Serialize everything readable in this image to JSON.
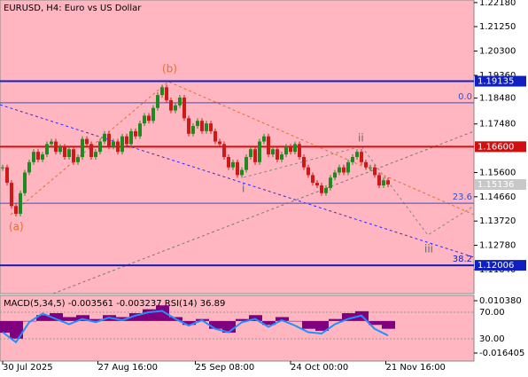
{
  "chart_data": [
    {
      "type": "candlestick",
      "title": "EURUSD, H4:  Euro vs US Dollar",
      "values": [
        1.158,
        1.152,
        1.143,
        1.14,
        1.148,
        1.156,
        1.16,
        1.164,
        1.161,
        1.163,
        1.167,
        1.168,
        1.164,
        1.166,
        1.162,
        1.165,
        1.16,
        1.162,
        1.169,
        1.167,
        1.162,
        1.164,
        1.168,
        1.171,
        1.166,
        1.168,
        1.164,
        1.17,
        1.167,
        1.172,
        1.17,
        1.175,
        1.178,
        1.176,
        1.181,
        1.186,
        1.189,
        1.184,
        1.18,
        1.182,
        1.185,
        1.177,
        1.171,
        1.174,
        1.176,
        1.172,
        1.175,
        1.172,
        1.168,
        1.167,
        1.162,
        1.158,
        1.16,
        1.155,
        1.157,
        1.162,
        1.165,
        1.16,
        1.168,
        1.17,
        1.163,
        1.165,
        1.161,
        1.163,
        1.166,
        1.164,
        1.167,
        1.162,
        1.158,
        1.155,
        1.152,
        1.151,
        1.148,
        1.15,
        1.154,
        1.156,
        1.158,
        1.156,
        1.16,
        1.162,
        1.164,
        1.16,
        1.158,
        1.158,
        1.155,
        1.151,
        1.153,
        1.15136
      ],
      "up_color": "#1f8a1f",
      "down_color": "#d01818",
      "xlim": [
        -0.6,
        106.4
      ],
      "ylim": [
        1.1091,
        1.2228
      ],
      "xticks": [
        {
          "value": 0,
          "label": "30 Jul 2025"
        },
        {
          "value": 21.5,
          "label": "27 Aug 16:00"
        },
        {
          "value": 43.5,
          "label": "25 Sep 08:00"
        },
        {
          "value": 65,
          "label": "24 Oct 00:00"
        },
        {
          "value": 86.5,
          "label": "21 Nov 16:00"
        }
      ],
      "yticks": [
        {
          "value": 1.2218,
          "label": "1.22180"
        },
        {
          "value": 1.2125,
          "label": "1.21250"
        },
        {
          "value": 1.203,
          "label": "1.20300"
        },
        {
          "value": 1.1936,
          "label": "1.19360"
        },
        {
          "value": 1.1848,
          "label": "1.18480"
        },
        {
          "value": 1.1748,
          "label": "1.17480"
        },
        {
          "value": 1.156,
          "label": "1.15600"
        },
        {
          "value": 1.1466,
          "label": "1.14660"
        },
        {
          "value": 1.1372,
          "label": "1.13720"
        },
        {
          "value": 1.1278,
          "label": "1.12780"
        },
        {
          "value": 1.1184,
          "label": "1.11840"
        }
      ],
      "levels": [
        {
          "value": 1.19135,
          "label": "1.19135",
          "color": "#1020c0",
          "width": 2
        },
        {
          "value": 1.183,
          "fib_label": "0.0",
          "color": "#3050d0",
          "width": 1
        },
        {
          "value": 1.166,
          "label": "1.16600",
          "color": "#d01010",
          "width": 2
        },
        {
          "value": 1.1441,
          "fib_label": "23.6",
          "color": "#3050d0",
          "width": 1
        },
        {
          "value": 1.12006,
          "label": "1.12006",
          "fib_label": "38.2",
          "color": "#1020c0",
          "width": 2
        }
      ],
      "last_price": {
        "value": 1.15136,
        "label": "1.15136",
        "color": "#c8c8c8"
      },
      "annotations": [
        "(a)",
        "(b)",
        "i",
        "ii",
        "iii"
      ],
      "background": "#ffb6c1"
    },
    {
      "type": "indicator",
      "title": "MACD(5,34,5) -0.003561 -0.003237 RSI(14) 36.89",
      "series": [
        {
          "color": "#800080",
          "values": [
            -0.006,
            -0.009,
            0.0,
            0.003,
            0.004,
            0.002,
            0.003,
            0.001,
            0.003,
            0.002,
            0.004,
            0.006,
            0.008,
            0.002,
            -0.002,
            0.001,
            -0.004,
            -0.006,
            0.001,
            0.003,
            -0.002,
            0.002,
            0.0,
            -0.004,
            -0.005,
            0.001,
            0.004,
            0.005,
            -0.002,
            -0.004
          ]
        },
        {
          "color": "#1e90ff",
          "axis": "y2",
          "values": [
            40,
            25,
            55,
            68,
            60,
            52,
            60,
            55,
            62,
            58,
            65,
            70,
            72,
            60,
            50,
            58,
            45,
            40,
            55,
            60,
            48,
            58,
            50,
            40,
            38,
            52,
            60,
            65,
            45,
            35
          ]
        }
      ],
      "ylim": [
        -0.02049,
        0.0131
      ],
      "yticks": [
        {
          "value": 0.01038,
          "label": "0.010380"
        },
        {
          "value": -0.016405,
          "label": "-0.016405"
        }
      ],
      "y2lim": [
        -3.3,
        95.3
      ],
      "y2ticks": [
        {
          "value": 70,
          "label": "70.00"
        },
        {
          "value": 30,
          "label": "30.00"
        }
      ],
      "background": "#ffb6c1"
    }
  ]
}
